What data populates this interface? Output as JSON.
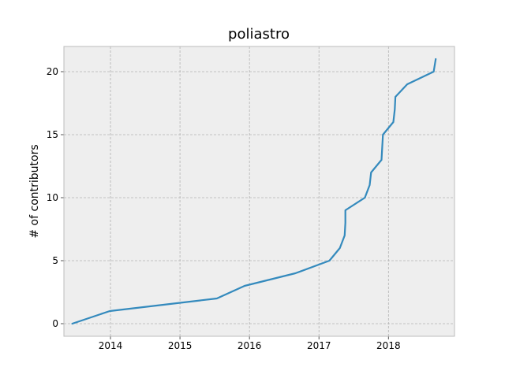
{
  "chart_data": {
    "type": "line",
    "title": "poliastro",
    "xlabel": "",
    "ylabel": "# of contributors",
    "x_ticks": [
      "2014",
      "2015",
      "2016",
      "2017",
      "2018"
    ],
    "y_ticks": [
      "0",
      "5",
      "10",
      "15",
      "20"
    ],
    "xlim": [
      2013.33,
      2018.95
    ],
    "ylim": [
      -1,
      22
    ],
    "grid": true,
    "colors": {
      "line": "#348ABD",
      "plot_bg": "#EEEEEE",
      "grid": "#B2B2B2",
      "frame": "#BCBCBC"
    },
    "series": [
      {
        "x": [
          2013.45,
          2013.99,
          2015.53,
          2015.93,
          2016.66,
          2017.15,
          2017.3,
          2017.37,
          2017.38,
          2017.38,
          2017.66,
          2017.73,
          2017.75,
          2017.9,
          2017.92,
          2018.07,
          2018.09,
          2018.1,
          2018.27,
          2018.65,
          2018.68
        ],
        "y": [
          0,
          1,
          2,
          3,
          4,
          5,
          6,
          7,
          8,
          9,
          10,
          11,
          12,
          13,
          15,
          16,
          17,
          18,
          19,
          20,
          21
        ]
      }
    ]
  }
}
